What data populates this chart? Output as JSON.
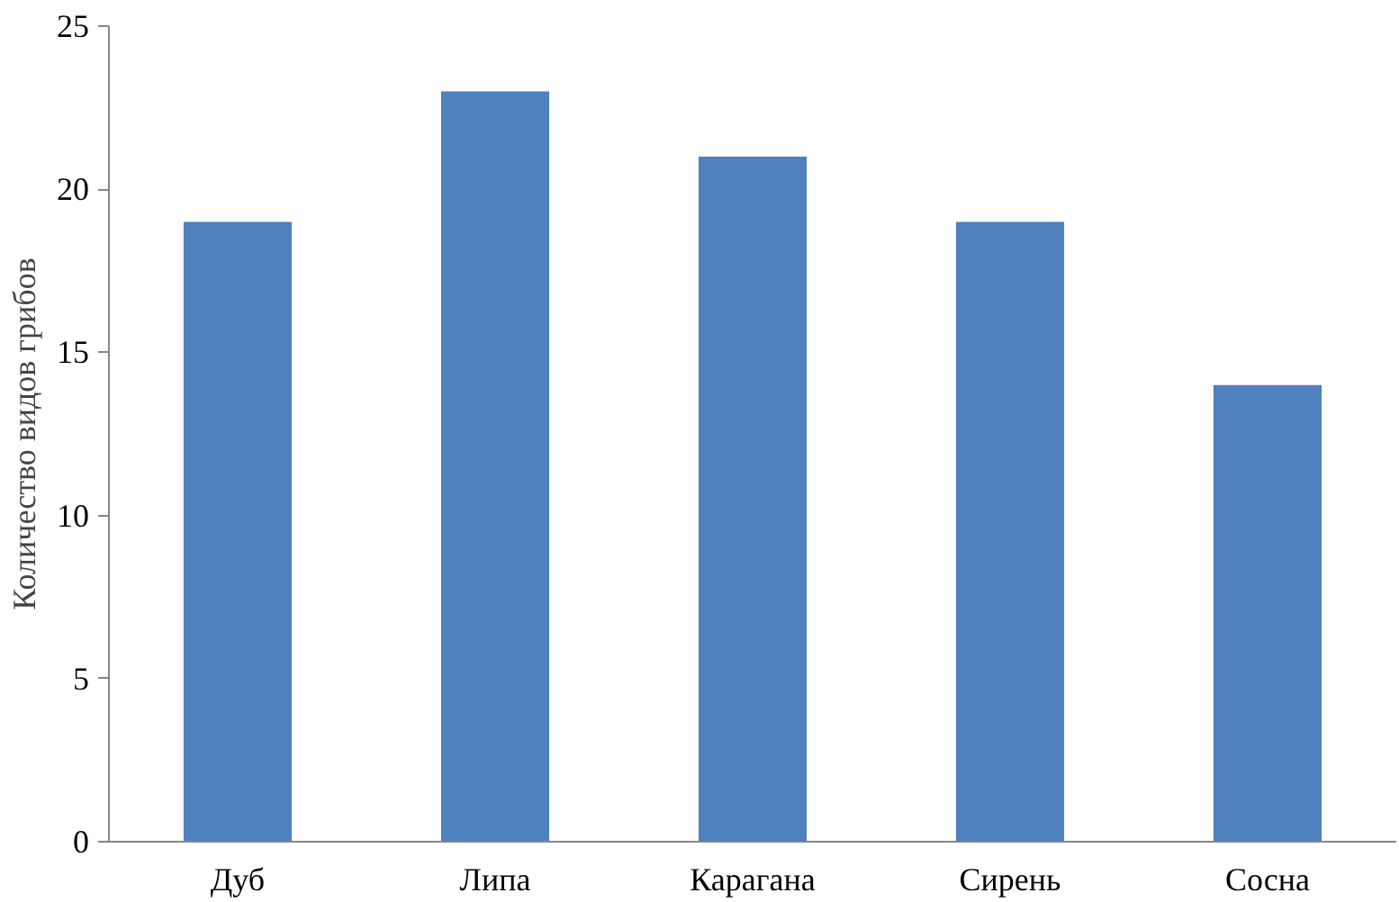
{
  "chart_data": {
    "type": "bar",
    "ylabel": "Количество видов грибов",
    "categories": [
      "Дуб",
      "Липа",
      "Карагана",
      "Сирень",
      "Сосна"
    ],
    "values": [
      19,
      23,
      21,
      19,
      14
    ],
    "color": "#4f81bd",
    "ylim": [
      0,
      25
    ],
    "yticks": [
      0,
      5,
      10,
      15,
      20,
      25
    ],
    "grid": false
  }
}
